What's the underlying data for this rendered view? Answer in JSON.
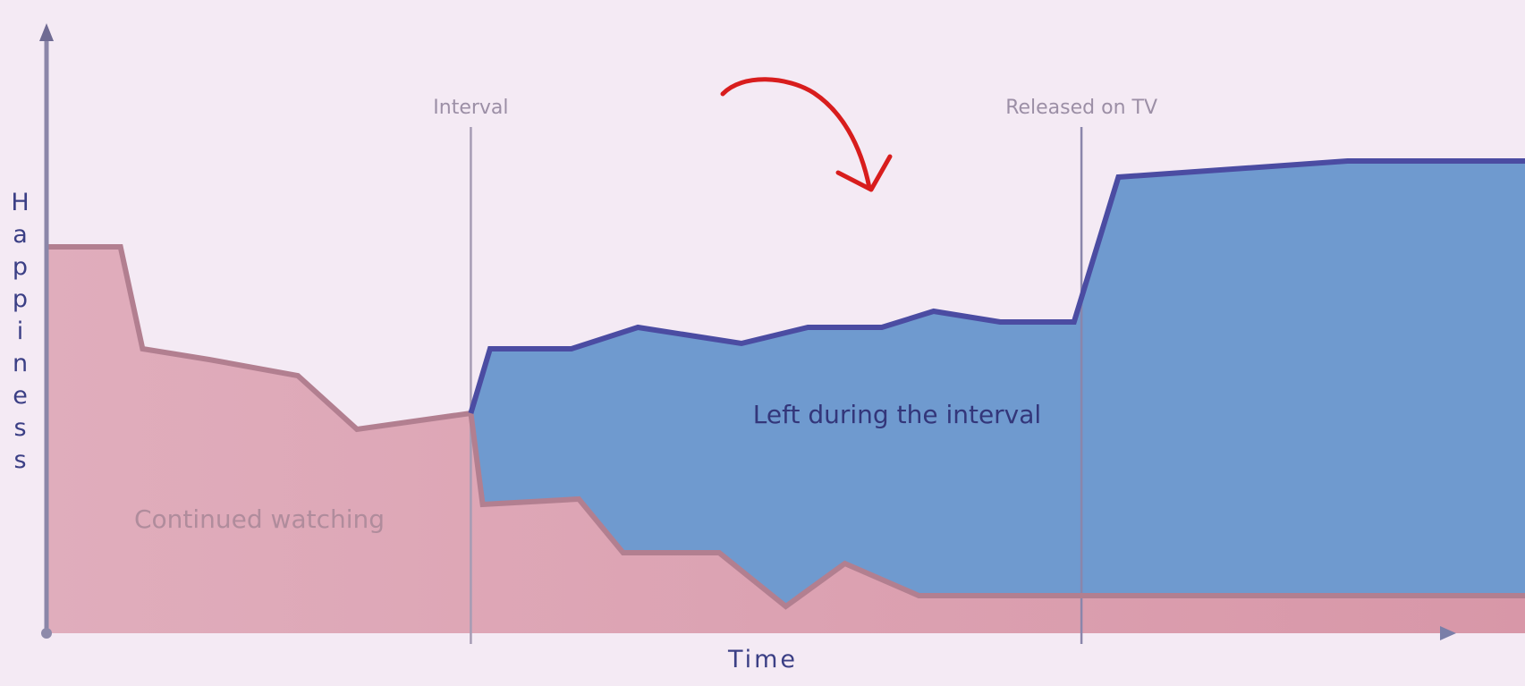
{
  "chart_data": {
    "type": "area",
    "xlabel": "Time",
    "ylabel": "Happiness",
    "axis_range": {
      "x": [
        0,
        1,
        "unlabeled"
      ],
      "y": [
        0,
        1,
        "unlabeled"
      ]
    },
    "grid": false,
    "legend": "none",
    "markers": [
      {
        "label": "Interval",
        "x": 0.287
      },
      {
        "label": "Released on TV",
        "x": 0.7
      }
    ],
    "series": [
      {
        "name": "Continued watching",
        "color": "#d99aab",
        "line_color": "#b27f90",
        "points": [
          [
            0.0,
            0.72
          ],
          [
            0.05,
            0.72
          ],
          [
            0.065,
            0.53
          ],
          [
            0.11,
            0.51
          ],
          [
            0.17,
            0.48
          ],
          [
            0.21,
            0.38
          ],
          [
            0.287,
            0.41
          ],
          [
            0.295,
            0.24
          ],
          [
            0.36,
            0.25
          ],
          [
            0.39,
            0.15
          ],
          [
            0.455,
            0.15
          ],
          [
            0.5,
            0.05
          ],
          [
            0.54,
            0.13
          ],
          [
            0.59,
            0.07
          ],
          [
            1.0,
            0.07
          ]
        ]
      },
      {
        "name": "Left during the interval",
        "color": "#6f9acf",
        "line_color": "#4b4ca2",
        "points": [
          [
            0.287,
            0.41
          ],
          [
            0.3,
            0.53
          ],
          [
            0.355,
            0.53
          ],
          [
            0.4,
            0.57
          ],
          [
            0.47,
            0.54
          ],
          [
            0.515,
            0.57
          ],
          [
            0.565,
            0.57
          ],
          [
            0.6,
            0.6
          ],
          [
            0.645,
            0.58
          ],
          [
            0.695,
            0.58
          ],
          [
            0.725,
            0.85
          ],
          [
            0.88,
            0.88
          ],
          [
            1.0,
            0.88
          ]
        ]
      }
    ],
    "annotations": [
      {
        "type": "curved-arrow",
        "color": "#d81d1d",
        "direction": "down-right"
      }
    ]
  }
}
